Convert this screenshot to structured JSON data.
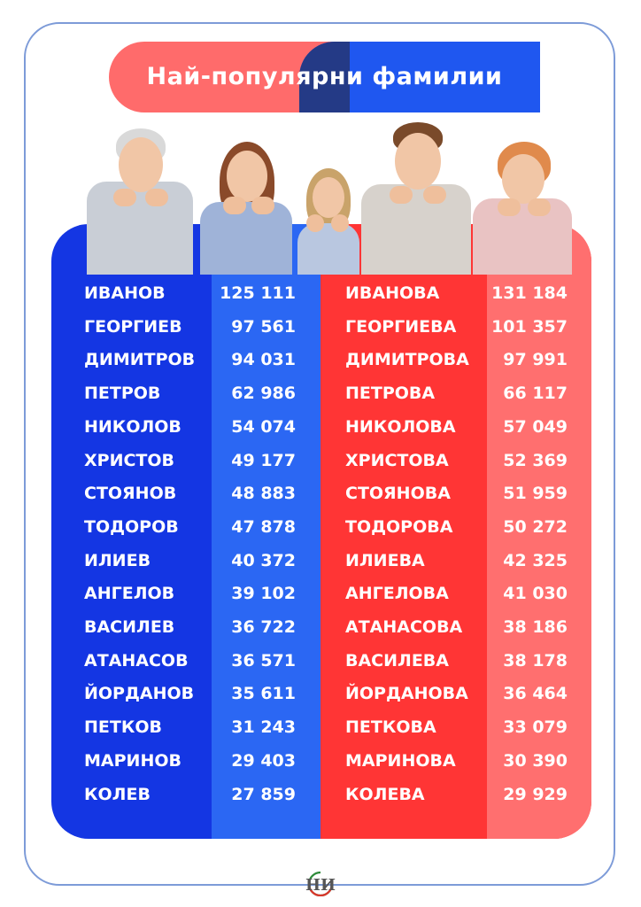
{
  "title": "Най-популярни фамилии",
  "colors": {
    "banner_red": "#ff6b6b",
    "banner_blue": "#1f57f0",
    "male_panel": "#1436e3",
    "male_stripe": "#2b67f3",
    "female_panel": "#ff3535",
    "female_stripe": "#ff6f6f"
  },
  "rows": [
    {
      "male": "ИВАНОВ",
      "male_count": "125 111",
      "female": "ИВАНОВА",
      "female_count": "131 184"
    },
    {
      "male": "ГЕОРГИЕВ",
      "male_count": "97 561",
      "female": "ГЕОРГИЕВА",
      "female_count": "101 357"
    },
    {
      "male": "ДИМИТРОВ",
      "male_count": "94 031",
      "female": "ДИМИТРОВА",
      "female_count": "97 991"
    },
    {
      "male": "ПЕТРОВ",
      "male_count": "62 986",
      "female": "ПЕТРОВА",
      "female_count": "66 117"
    },
    {
      "male": "НИКОЛОВ",
      "male_count": "54 074",
      "female": "НИКОЛОВА",
      "female_count": "57 049"
    },
    {
      "male": "ХРИСТОВ",
      "male_count": "49 177",
      "female": "ХРИСТОВА",
      "female_count": "52 369"
    },
    {
      "male": "СТОЯНОВ",
      "male_count": "48 883",
      "female": "СТОЯНОВА",
      "female_count": "51 959"
    },
    {
      "male": "ТОДОРОВ",
      "male_count": "47 878",
      "female": "ТОДОРОВА",
      "female_count": "50 272"
    },
    {
      "male": "ИЛИЕВ",
      "male_count": "40 372",
      "female": "ИЛИЕВА",
      "female_count": "42 325"
    },
    {
      "male": "АНГЕЛОВ",
      "male_count": "39 102",
      "female": "АНГЕЛОВА",
      "female_count": "41 030"
    },
    {
      "male": "ВАСИЛЕВ",
      "male_count": "36 722",
      "female": "АТАНАСОВА",
      "female_count": "38 186"
    },
    {
      "male": "АТАНАСОВ",
      "male_count": "36 571",
      "female": "ВАСИЛЕВА",
      "female_count": "38 178"
    },
    {
      "male": "ЙОРДАНОВ",
      "male_count": "35 611",
      "female": "ЙОРДАНОВА",
      "female_count": "36 464"
    },
    {
      "male": "ПЕТКОВ",
      "male_count": "31 243",
      "female": "ПЕТКОВА",
      "female_count": "33 079"
    },
    {
      "male": "МАРИНОВ",
      "male_count": "29 403",
      "female": "МАРИНОВА",
      "female_count": "30 390"
    },
    {
      "male": "КОЛЕВ",
      "male_count": "27 859",
      "female": "КОЛЕВА",
      "female_count": "29 929"
    }
  ],
  "logo": {
    "text": "НИ"
  }
}
